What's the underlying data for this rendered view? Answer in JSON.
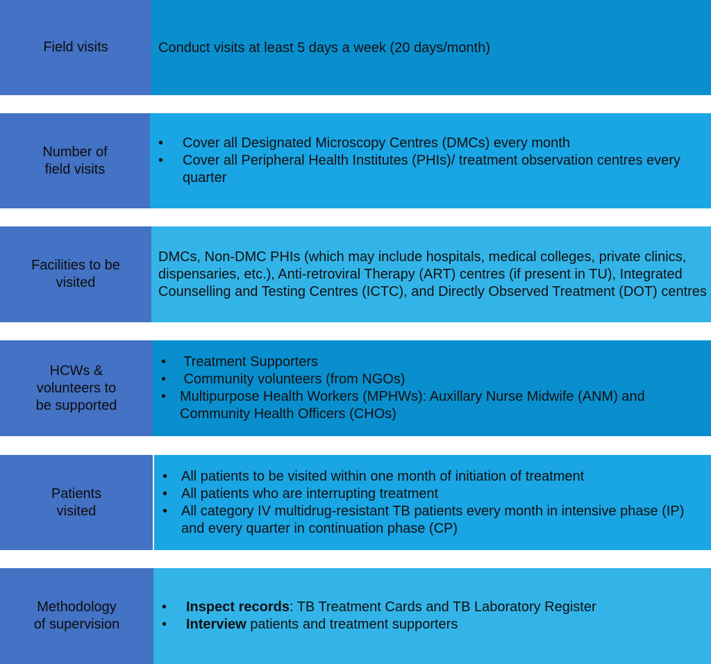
{
  "rows": [
    {
      "label": "Field visits",
      "text": "Conduct visits at least 5 days a week (20 days/month)",
      "label_color": "#4472C4",
      "content_color": "#0A8FCE"
    },
    {
      "label": "Number of\nfield visits",
      "bullets": [
        "Cover all Designated Microscopy Centres (DMCs) every month",
        "Cover all Peripheral Health Institutes (PHIs)/ treatment observation centres every quarter"
      ],
      "label_color": "#4472C4",
      "content_color": "#1AA5E4"
    },
    {
      "label": "Facilities to be\nvisited",
      "text": "DMCs, Non-DMC PHIs (which may include hospitals, medical colleges, private clinics, dispensaries, etc.), Anti-retroviral Therapy (ART) centres (if present in TU), Integrated Counselling and Testing Centres (ICTC), and Directly Observed Treatment (DOT) centres",
      "label_color": "#4472C4",
      "content_color": "#33B4E8"
    },
    {
      "label": "HCWs &\nvolunteers to\nbe supported",
      "bullets": [
        " Treatment Supporters",
        " Community volunteers (from NGOs)",
        "Multipurpose Health Workers (MPHWs): Auxillary Nurse Midwife (ANM) and Community Health Officers (CHOs)"
      ],
      "label_color": "#4472C4",
      "content_color": "#0A8FCE"
    },
    {
      "label": "Patients\nvisited",
      "bullets": [
        "All patients to be visited within one month of initiation of treatment",
        "All patients who are interrupting treatment",
        "All category IV multidrug-resistant TB patients every month in intensive phase (IP) and every quarter in continuation phase (CP)"
      ],
      "label_color": "#4472C4",
      "content_color": "#1AA5E4"
    },
    {
      "label": "Methodology\nof supervision",
      "bullets_rich": [
        {
          "strong": "Inspect records",
          "rest": ": TB Treatment Cards and TB Laboratory Register"
        },
        {
          "strong": "Interview",
          "rest": " patients and treatment supporters"
        }
      ],
      "label_color": "#4472C4",
      "content_color": "#33B4E8"
    }
  ]
}
